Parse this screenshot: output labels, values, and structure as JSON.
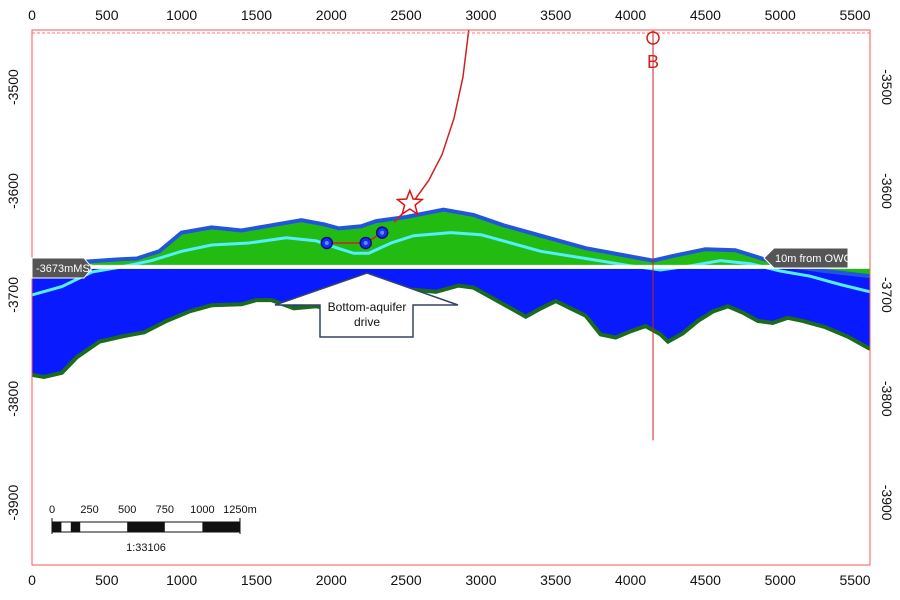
{
  "section": {
    "x_range": [
      0,
      5600
    ],
    "y_range": [
      -3445,
      -3960
    ],
    "x_ticks": [
      0,
      500,
      1000,
      1500,
      2000,
      2500,
      3000,
      3500,
      4000,
      4500,
      5000,
      5500
    ],
    "x_tick_labels": [
      "0",
      "500",
      "1000",
      "1500",
      "2000",
      "2500",
      "3000",
      "3500",
      "4000",
      "4500",
      "5000",
      "5500"
    ],
    "y_ticks": [
      -3500,
      -3600,
      -3700,
      -3800,
      -3900
    ],
    "y_tick_labels": [
      "-3500",
      "-3600",
      "-3700",
      "-3800",
      "-3900"
    ],
    "colors": {
      "oil_zone": "#22bb11",
      "water_zone": "#0a1aff",
      "top_outline": "#2255dd",
      "base_outline": "#1a6b1a",
      "swept_line": "#55eeff",
      "owc_line": "#ffffff",
      "well": "#cc2222",
      "border": "#ff5555",
      "label_bg": "#555555"
    },
    "top_surface": [
      [
        0,
        3680
      ],
      [
        150,
        3675
      ],
      [
        350,
        3668
      ],
      [
        550,
        3666
      ],
      [
        700,
        3665
      ],
      [
        850,
        3658
      ],
      [
        1000,
        3640
      ],
      [
        1200,
        3635
      ],
      [
        1400,
        3638
      ],
      [
        1600,
        3633
      ],
      [
        1800,
        3628
      ],
      [
        1950,
        3632
      ],
      [
        2050,
        3636
      ],
      [
        2200,
        3634
      ],
      [
        2300,
        3629
      ],
      [
        2500,
        3625
      ],
      [
        2750,
        3618
      ],
      [
        2950,
        3623
      ],
      [
        3150,
        3633
      ],
      [
        3400,
        3643
      ],
      [
        3700,
        3655
      ],
      [
        4000,
        3663
      ],
      [
        4150,
        3667
      ],
      [
        4300,
        3662
      ],
      [
        4500,
        3656
      ],
      [
        4700,
        3657
      ],
      [
        4900,
        3666
      ],
      [
        5100,
        3673
      ],
      [
        5300,
        3677
      ],
      [
        5600,
        3682
      ]
    ],
    "swept_line_points": [
      [
        0,
        3700
      ],
      [
        200,
        3692
      ],
      [
        400,
        3678
      ],
      [
        600,
        3673
      ],
      [
        800,
        3667
      ],
      [
        1000,
        3658
      ],
      [
        1200,
        3652
      ],
      [
        1450,
        3650
      ],
      [
        1700,
        3645
      ],
      [
        1900,
        3648
      ],
      [
        2000,
        3653
      ],
      [
        2150,
        3660
      ],
      [
        2250,
        3660
      ],
      [
        2400,
        3650
      ],
      [
        2550,
        3643
      ],
      [
        2800,
        3640
      ],
      [
        3000,
        3642
      ],
      [
        3200,
        3650
      ],
      [
        3400,
        3658
      ],
      [
        3700,
        3665
      ],
      [
        4000,
        3672
      ],
      [
        4200,
        3676
      ],
      [
        4400,
        3672
      ],
      [
        4600,
        3667
      ],
      [
        4800,
        3670
      ],
      [
        5000,
        3677
      ],
      [
        5200,
        3682
      ],
      [
        5400,
        3690
      ],
      [
        5600,
        3697
      ]
    ],
    "base_surface": [
      [
        0,
        3777
      ],
      [
        80,
        3779
      ],
      [
        200,
        3775
      ],
      [
        300,
        3760
      ],
      [
        450,
        3745
      ],
      [
        600,
        3740
      ],
      [
        750,
        3736
      ],
      [
        900,
        3725
      ],
      [
        1050,
        3716
      ],
      [
        1200,
        3710
      ],
      [
        1400,
        3709
      ],
      [
        1500,
        3705
      ],
      [
        1600,
        3705
      ],
      [
        1750,
        3713
      ],
      [
        1900,
        3711
      ],
      [
        2000,
        3714
      ],
      [
        2100,
        3709
      ],
      [
        2200,
        3699
      ],
      [
        2300,
        3698
      ],
      [
        2400,
        3697
      ],
      [
        2550,
        3695
      ],
      [
        2700,
        3697
      ],
      [
        2850,
        3691
      ],
      [
        2950,
        3693
      ],
      [
        3050,
        3701
      ],
      [
        3200,
        3713
      ],
      [
        3300,
        3721
      ],
      [
        3400,
        3713
      ],
      [
        3500,
        3706
      ],
      [
        3600,
        3713
      ],
      [
        3700,
        3720
      ],
      [
        3800,
        3738
      ],
      [
        3900,
        3741
      ],
      [
        4000,
        3735
      ],
      [
        4100,
        3730
      ],
      [
        4200,
        3738
      ],
      [
        4250,
        3745
      ],
      [
        4350,
        3737
      ],
      [
        4450,
        3725
      ],
      [
        4550,
        3716
      ],
      [
        4650,
        3711
      ],
      [
        4750,
        3717
      ],
      [
        4850,
        3725
      ],
      [
        4950,
        3727
      ],
      [
        5050,
        3722
      ],
      [
        5150,
        3725
      ],
      [
        5300,
        3731
      ],
      [
        5450,
        3740
      ],
      [
        5600,
        3752
      ]
    ],
    "owc_depth": 3673,
    "well_trajectory": [
      [
        2923,
        3440
      ],
      [
        2880,
        3490
      ],
      [
        2820,
        3530
      ],
      [
        2740,
        3565
      ],
      [
        2650,
        3590
      ],
      [
        2540,
        3612
      ],
      [
        2420,
        3630
      ]
    ],
    "well_markers": [
      [
        1970,
        3650
      ],
      [
        2230,
        3650
      ],
      [
        2340,
        3640
      ]
    ],
    "star_marker": [
      2525,
      3612
    ],
    "well_b_x": 4150,
    "well_b_bottom": 3840,
    "well_b_label": "B",
    "owc_left_label": "-3673mMSl",
    "owc_right_label": "10m from OWC",
    "callout_text_line1": "Bottom-aquifer",
    "callout_text_line2": "drive",
    "scale_bar": {
      "labels": [
        "0",
        "250",
        "500",
        "750",
        "1000",
        "1250m"
      ],
      "ratio": "1:33106"
    }
  }
}
